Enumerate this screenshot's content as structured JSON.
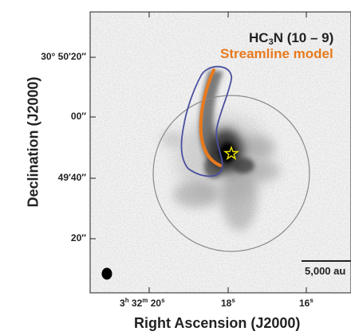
{
  "title": {
    "molecule_prefix": "HC",
    "molecule_sub": "3",
    "molecule_suffix": "N (10 – 9)",
    "model_label": "Streamline model"
  },
  "axes": {
    "ylabel": "Declination (J2000)",
    "xlabel": "Right Ascension (J2000)",
    "yticks": [
      {
        "text": "30° 50′20″"
      },
      {
        "text": "00″"
      },
      {
        "text": "49′40″"
      },
      {
        "text": "20″"
      }
    ],
    "xticks": [
      {
        "pre": "3",
        "h": "h",
        "mid": " 32",
        "m": "m",
        "mid2": " 20",
        "s": "s"
      },
      {
        "pre": "18",
        "s": "s"
      },
      {
        "pre": "16",
        "s": "s"
      }
    ]
  },
  "scalebar": {
    "label": "5,000 au"
  },
  "colors": {
    "streamline": "#e87a1e",
    "contour": "#4a4fa0",
    "primary_beam": "#8a8a8a",
    "star": "#e8e000"
  }
}
